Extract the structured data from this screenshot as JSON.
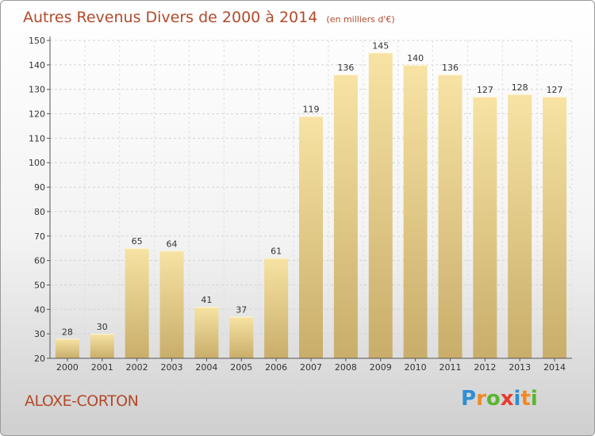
{
  "chart_data": {
    "type": "bar",
    "title": "Autres Revenus Divers de 2000 à 2014",
    "subtitle": "(en milliers d'€)",
    "categories": [
      "2000",
      "2001",
      "2002",
      "2003",
      "2004",
      "2005",
      "2006",
      "2007",
      "2008",
      "2009",
      "2010",
      "2011",
      "2012",
      "2013",
      "2014"
    ],
    "values": [
      28,
      30,
      65,
      64,
      41,
      37,
      61,
      119,
      136,
      145,
      140,
      136,
      127,
      128,
      127
    ],
    "ylim": [
      20,
      150
    ],
    "yticks": [
      20,
      30,
      40,
      50,
      60,
      70,
      80,
      90,
      100,
      110,
      120,
      130,
      140,
      150
    ],
    "grid": true,
    "bar_color": "#e6cc85"
  },
  "place_name": "ALOXE-CORTON",
  "logo": {
    "letters": [
      "P",
      "r",
      "o",
      "x",
      "i",
      "t",
      "i"
    ],
    "colors": [
      "#2d8fd5",
      "#f08a24",
      "#5bb531",
      "#e63c2f",
      "#2d8fd5",
      "#f08a24",
      "#5bb531"
    ]
  }
}
